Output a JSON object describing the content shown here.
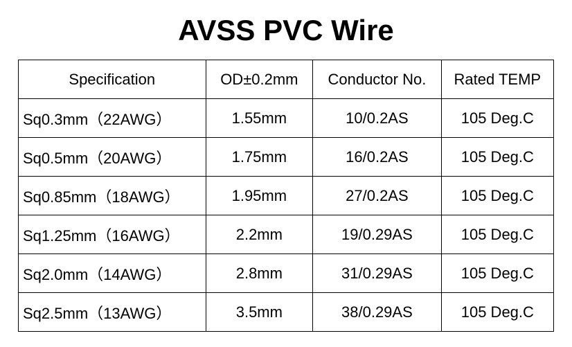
{
  "table": {
    "type": "table",
    "title": "AVSS PVC Wire",
    "title_fontsize": 42,
    "cell_fontsize": 22,
    "background_color": "#ffffff",
    "border_color": "#000000",
    "text_color": "#000000",
    "columns": [
      {
        "label": "Specification",
        "width_pct": 35,
        "align": "left"
      },
      {
        "label": "OD±0.2mm",
        "width_pct": 20,
        "align": "center"
      },
      {
        "label": "Conductor No.",
        "width_pct": 24,
        "align": "center"
      },
      {
        "label": "Rated TEMP",
        "width_pct": 21,
        "align": "center"
      }
    ],
    "rows": [
      {
        "spec": "Sq0.3mm（22AWG）",
        "od": "1.55mm",
        "conductor": "10/0.2AS",
        "temp": "105 Deg.C"
      },
      {
        "spec": "Sq0.5mm（20AWG）",
        "od": "1.75mm",
        "conductor": "16/0.2AS",
        "temp": "105 Deg.C"
      },
      {
        "spec": "Sq0.85mm（18AWG）",
        "od": "1.95mm",
        "conductor": "27/0.2AS",
        "temp": "105 Deg.C"
      },
      {
        "spec": "Sq1.25mm（16AWG）",
        "od": "2.2mm",
        "conductor": "19/0.29AS",
        "temp": "105 Deg.C"
      },
      {
        "spec": "Sq2.0mm（14AWG）",
        "od": "2.8mm",
        "conductor": "31/0.29AS",
        "temp": "105 Deg.C"
      },
      {
        "spec": "Sq2.5mm（13AWG）",
        "od": "3.5mm",
        "conductor": "38/0.29AS",
        "temp": "105 Deg.C"
      }
    ]
  }
}
